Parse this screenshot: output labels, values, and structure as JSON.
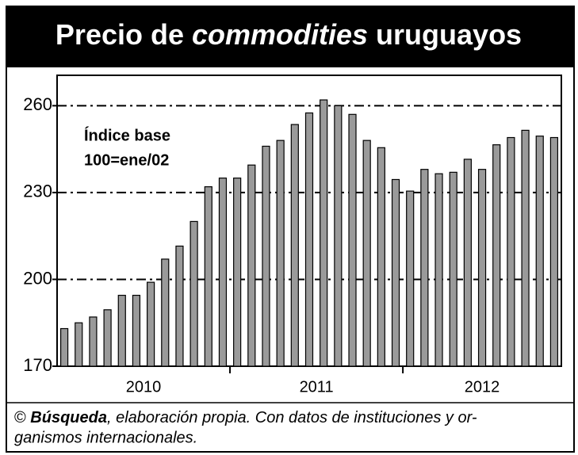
{
  "chart_data": {
    "type": "bar",
    "title": [
      "Precio de ",
      "commodities",
      " uruguayos"
    ],
    "annotation": [
      "Índice base",
      "100=ene/02"
    ],
    "categories": [
      null,
      null,
      null,
      null,
      null,
      null,
      null,
      null,
      null,
      null,
      null,
      null,
      null,
      null,
      null,
      null,
      null,
      null,
      null,
      null,
      null,
      null,
      null,
      null,
      null,
      null,
      null,
      null,
      null,
      null,
      null,
      null,
      null,
      null,
      null
    ],
    "year_labels": [
      "2010",
      "2011",
      "2012"
    ],
    "values": [
      183,
      185,
      187,
      189.5,
      194.5,
      194.5,
      199,
      207,
      211.5,
      220,
      232,
      235,
      235,
      239.5,
      246,
      248,
      253.5,
      257.5,
      262,
      260,
      257,
      248,
      245.5,
      234.5,
      230.5,
      238,
      236.5,
      237,
      241.5,
      238,
      246.5,
      249,
      251.5,
      249.5,
      249
    ],
    "color": "#9a9a9a",
    "ylim": [
      170,
      270.5
    ],
    "yticks": [
      170,
      200,
      230,
      260
    ],
    "grid": true,
    "source": [
      "© ",
      "Búsqueda",
      ", elaboración propia. Con datos de instituciones y or-",
      "ganismos internacionales."
    ]
  }
}
